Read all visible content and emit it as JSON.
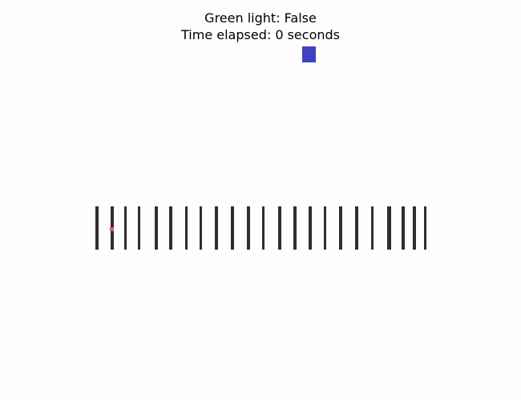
{
  "hud": {
    "green_light_label": "Green light: False",
    "time_elapsed_label": "Time elapsed: 0 seconds"
  },
  "colors": {
    "background": "#fdfdfd",
    "player": "#4141c2",
    "barrier": "#2e2e2e",
    "target": "#e85a5a"
  }
}
